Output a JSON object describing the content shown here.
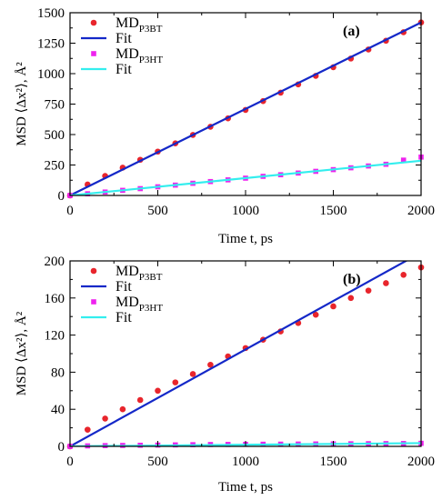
{
  "colors": {
    "md_p3bt": "#e8252c",
    "fit_p3bt": "#1428c8",
    "md_p3ht": "#ee22ee",
    "fit_p3ht": "#33eeee"
  },
  "chart_data": [
    {
      "type": "scatter",
      "panel_label": "(a)",
      "xlabel": "Time t, ps",
      "ylabel": "MSD ⟨Δx²⟩, Å²",
      "xlim": [
        0,
        2000
      ],
      "ylim": [
        0,
        1500
      ],
      "xticks": [
        0,
        500,
        1000,
        1500,
        2000
      ],
      "yticks": [
        0,
        250,
        500,
        750,
        1000,
        1250,
        1500
      ],
      "legend_position": "top-left",
      "series": [
        {
          "name": "MD_P3BT",
          "kind": "points",
          "color": "#e8252c",
          "x": [
            0,
            100,
            200,
            300,
            400,
            500,
            600,
            700,
            800,
            900,
            1000,
            1100,
            1200,
            1300,
            1400,
            1500,
            1600,
            1700,
            1800,
            1900,
            2000
          ],
          "y": [
            0,
            90,
            160,
            228,
            293,
            360,
            428,
            497,
            564,
            633,
            702,
            775,
            844,
            912,
            982,
            1053,
            1124,
            1198,
            1270,
            1340,
            1420
          ]
        },
        {
          "name": "Fit",
          "kind": "line",
          "color": "#1428c8",
          "x": [
            0,
            2000
          ],
          "y": [
            0,
            1420
          ]
        },
        {
          "name": "MD_P3HT",
          "kind": "points",
          "color": "#ee22ee",
          "x": [
            0,
            100,
            200,
            300,
            400,
            500,
            600,
            700,
            800,
            900,
            1000,
            1100,
            1200,
            1300,
            1400,
            1500,
            1600,
            1700,
            1800,
            1900,
            2000
          ],
          "y": [
            0,
            14,
            28,
            42,
            56,
            71,
            85,
            100,
            114,
            128,
            142,
            157,
            170,
            184,
            198,
            212,
            227,
            242,
            256,
            290,
            315
          ]
        },
        {
          "name": "Fit",
          "kind": "line",
          "color": "#33eeee",
          "x": [
            0,
            2000
          ],
          "y": [
            0,
            285
          ]
        }
      ]
    },
    {
      "type": "scatter",
      "panel_label": "(b)",
      "xlabel": "Time t, ps",
      "ylabel": "MSD ⟨Δx²⟩, Å²",
      "xlim": [
        0,
        2000
      ],
      "ylim": [
        0,
        200
      ],
      "xticks": [
        0,
        500,
        1000,
        1500,
        2000
      ],
      "yticks": [
        0,
        40,
        80,
        120,
        160,
        200
      ],
      "legend_position": "top-left",
      "series": [
        {
          "name": "MD_P3BT",
          "kind": "points",
          "color": "#e8252c",
          "x": [
            0,
            100,
            200,
            300,
            400,
            500,
            600,
            700,
            800,
            900,
            1000,
            1100,
            1200,
            1300,
            1400,
            1500,
            1600,
            1700,
            1800,
            1900,
            2000
          ],
          "y": [
            0,
            18,
            30,
            40,
            50,
            60,
            69,
            78,
            88,
            97,
            106,
            115,
            124,
            133,
            142,
            151,
            160,
            168,
            176,
            185,
            193
          ]
        },
        {
          "name": "Fit",
          "kind": "line",
          "color": "#1428c8",
          "x": [
            0,
            2000
          ],
          "y": [
            0,
            209
          ]
        },
        {
          "name": "MD_P3HT",
          "kind": "points",
          "color": "#ee22ee",
          "x": [
            0,
            100,
            200,
            300,
            400,
            500,
            600,
            700,
            800,
            900,
            1000,
            1100,
            1200,
            1300,
            1400,
            1500,
            1600,
            1700,
            1800,
            1900,
            2000
          ],
          "y": [
            0,
            0.5,
            0.8,
            1.0,
            1.2,
            1.4,
            1.6,
            1.8,
            2.0,
            2.1,
            2.2,
            2.3,
            2.4,
            2.5,
            2.6,
            2.7,
            2.8,
            2.9,
            3.0,
            3.1,
            3.3
          ]
        },
        {
          "name": "Fit",
          "kind": "line",
          "color": "#33eeee",
          "x": [
            0,
            2000
          ],
          "y": [
            0,
            3.5
          ]
        }
      ]
    }
  ]
}
